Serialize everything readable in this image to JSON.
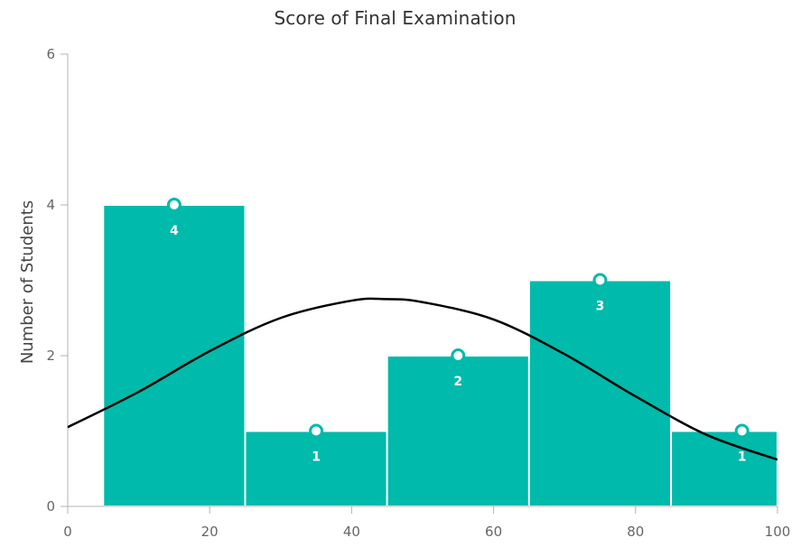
{
  "chart_data": {
    "type": "bar",
    "title": "Score of Final Examination",
    "xlabel": "",
    "ylabel": "Number of Students",
    "bins": [
      {
        "start": 5,
        "end": 25,
        "center": 15,
        "value": 4
      },
      {
        "start": 25,
        "end": 45,
        "center": 35,
        "value": 1
      },
      {
        "start": 45,
        "end": 65,
        "center": 55,
        "value": 2
      },
      {
        "start": 65,
        "end": 85,
        "center": 75,
        "value": 3
      },
      {
        "start": 85,
        "end": 100,
        "center": 95,
        "value": 1
      }
    ],
    "xlim": [
      0,
      100
    ],
    "ylim": [
      0,
      6
    ],
    "x_ticks": [
      "0",
      "20",
      "40",
      "60",
      "80",
      "100"
    ],
    "y_ticks": [
      "0",
      "2",
      "4",
      "6"
    ],
    "normal_curve": {
      "x": [
        0,
        10,
        20,
        30,
        40,
        45,
        50,
        60,
        70,
        80,
        90,
        100
      ],
      "y": [
        1.05,
        1.52,
        2.06,
        2.5,
        2.73,
        2.75,
        2.71,
        2.48,
        2.02,
        1.46,
        0.95,
        0.62
      ]
    },
    "grid": false,
    "legend": "none",
    "colors": {
      "bar": "#00BAAB",
      "bar_border": "#ffffff",
      "curve": "#000000",
      "marker_fill": "#ffffff",
      "marker_stroke": "#00BAAB",
      "axis": "#b3b3b3",
      "label": "#ffffff"
    }
  }
}
